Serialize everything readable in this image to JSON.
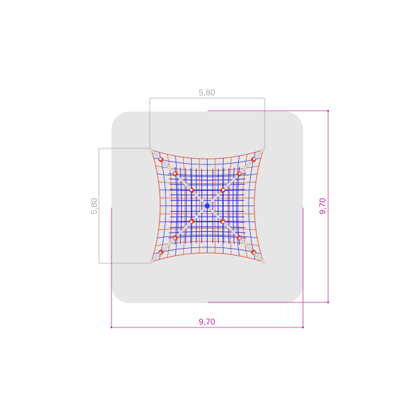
{
  "dimensions": {
    "net_width": "5,80",
    "net_depth": "5,80",
    "area_width": "9,70",
    "area_depth": "9,70"
  },
  "colors": {
    "safety_area": "#e6e6e6",
    "net_dimension": "#a8a8a8",
    "area_dimension": "#c0208a",
    "net_rope_blue": "#2a1fd0",
    "net_rope_red": "#e0402a",
    "pole": "#bdbdbd",
    "center": "#1f3cff"
  }
}
